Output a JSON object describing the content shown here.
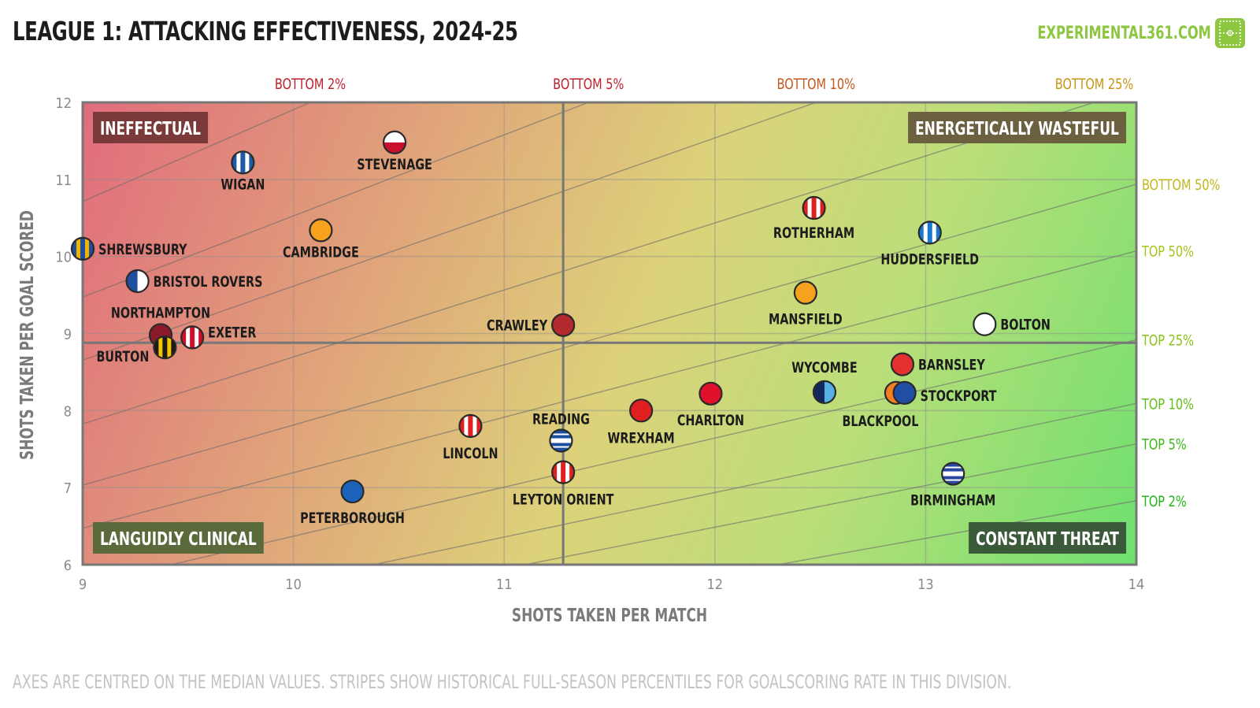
{
  "header": {
    "title": "LEAGUE 1: ATTACKING EFFECTIVENESS, 2024-25",
    "brand": "EXPERIMENTAL361.COM"
  },
  "footnote": "AXES ARE CENTRED ON THE MEDIAN VALUES. STRIPES SHOW HISTORICAL FULL-SEASON PERCENTILES FOR GOALSCORING RATE IN THIS DIVISION.",
  "chart_data": {
    "type": "scatter",
    "title": "LEAGUE 1: ATTACKING EFFECTIVENESS, 2024-25",
    "xlabel": "SHOTS TAKEN PER MATCH",
    "ylabel": "SHOTS TAKEN PER GOAL SCORED",
    "xlim": [
      9,
      14
    ],
    "ylim": [
      6,
      12
    ],
    "xticks": [
      "9",
      "10",
      "11",
      "12",
      "13",
      "14"
    ],
    "yticks": [
      "6",
      "7",
      "8",
      "9",
      "10",
      "11",
      "12"
    ],
    "grid": true,
    "median_x": 11.28,
    "median_y": 8.88,
    "quadrants": {
      "top_left": "INEFFECTUAL",
      "top_right": "ENERGETICALLY WASTEFUL",
      "bottom_left": "LANGUIDLY CLINICAL",
      "bottom_right": "CONSTANT THREAT"
    },
    "percentile_bands": [
      {
        "label": "BOTTOM 2%",
        "goals_per_match": 0.84,
        "color": "#c0202a",
        "edge": "top"
      },
      {
        "label": "BOTTOM 5%",
        "goals_per_match": 0.95,
        "color": "#c0202a",
        "edge": "top"
      },
      {
        "label": "BOTTOM 10%",
        "goals_per_match": 1.04,
        "color": "#c5571c",
        "edge": "top"
      },
      {
        "label": "BOTTOM 25%",
        "goals_per_match": 1.15,
        "color": "#c89513",
        "edge": "top"
      },
      {
        "label": "BOTTOM 50%",
        "goals_per_match": 1.28,
        "color": "#c2b81c",
        "edge": "right"
      },
      {
        "label": "TOP 50%",
        "goals_per_match": 1.39,
        "color": "#a2c41c",
        "edge": "right"
      },
      {
        "label": "TOP 25%",
        "goals_per_match": 1.57,
        "color": "#88c21a",
        "edge": "right"
      },
      {
        "label": "TOP 10%",
        "goals_per_match": 1.73,
        "color": "#62be1a",
        "edge": "right"
      },
      {
        "label": "TOP 5%",
        "goals_per_match": 1.85,
        "color": "#3db81a",
        "edge": "right"
      },
      {
        "label": "TOP 2%",
        "goals_per_match": 2.05,
        "color": "#22b61a",
        "edge": "right"
      }
    ],
    "teams": [
      {
        "name": "STEVENAGE",
        "x": 10.48,
        "y": 11.48,
        "style": "hsplit",
        "c1": "#ffffff",
        "c2": "#c8102e",
        "lx": 0,
        "ly": 34,
        "anchor": "middle"
      },
      {
        "name": "WIGAN",
        "x": 9.76,
        "y": 11.22,
        "style": "vstripe",
        "c1": "#ffffff",
        "c2": "#1f5aa6",
        "lx": 0,
        "ly": 34,
        "anchor": "middle"
      },
      {
        "name": "CAMBRIDGE",
        "x": 10.13,
        "y": 10.34,
        "style": "solid",
        "c1": "#f6a21e",
        "lx": 0,
        "ly": 34,
        "anchor": "middle"
      },
      {
        "name": "SHREWSBURY",
        "x": 9.0,
        "y": 10.1,
        "style": "vstripe",
        "c1": "#f2b200",
        "c2": "#1f4f9e",
        "lx": 20,
        "ly": 7,
        "anchor": "start"
      },
      {
        "name": "BRISTOL ROVERS",
        "x": 9.26,
        "y": 9.68,
        "style": "vsplit",
        "c1": "#1e4fa0",
        "c2": "#ffffff",
        "lx": 20,
        "ly": 7,
        "anchor": "start"
      },
      {
        "name": "NORTHAMPTON",
        "x": 9.37,
        "y": 8.98,
        "style": "solid",
        "c1": "#8b1a2b",
        "lx": 0,
        "ly": -22,
        "anchor": "middle"
      },
      {
        "name": "EXETER",
        "x": 9.52,
        "y": 8.95,
        "style": "vstripe",
        "c1": "#ffffff",
        "c2": "#d0102a",
        "lx": 20,
        "ly": 0,
        "anchor": "start"
      },
      {
        "name": "BURTON",
        "x": 9.39,
        "y": 8.82,
        "style": "vstripe",
        "c1": "#f2c500",
        "c2": "#1a1a1a",
        "lx": -20,
        "ly": 18,
        "anchor": "end"
      },
      {
        "name": "CRAWLEY",
        "x": 11.28,
        "y": 9.11,
        "style": "solid",
        "c1": "#b2292e",
        "lx": -20,
        "ly": 7,
        "anchor": "end"
      },
      {
        "name": "ROTHERHAM",
        "x": 12.47,
        "y": 10.63,
        "style": "vstripe",
        "c1": "#ffffff",
        "c2": "#e02020",
        "lx": 0,
        "ly": 38,
        "anchor": "middle"
      },
      {
        "name": "HUDDERSFIELD",
        "x": 13.02,
        "y": 10.31,
        "style": "vstripe",
        "c1": "#ffffff",
        "c2": "#1a78cf",
        "lx": 0,
        "ly": 40,
        "anchor": "middle"
      },
      {
        "name": "MANSFIELD",
        "x": 12.43,
        "y": 9.53,
        "style": "solid",
        "c1": "#f6a21e",
        "lx": 0,
        "ly": 40,
        "anchor": "middle"
      },
      {
        "name": "BOLTON",
        "x": 13.28,
        "y": 9.12,
        "style": "solid",
        "c1": "#ffffff",
        "lx": 20,
        "ly": 7,
        "anchor": "start"
      },
      {
        "name": "BARNSLEY",
        "x": 12.89,
        "y": 8.6,
        "style": "solid",
        "c1": "#e53030",
        "lx": 20,
        "ly": 7,
        "anchor": "start"
      },
      {
        "name": "WYCOMBE",
        "x": 12.52,
        "y": 8.24,
        "style": "vsplit",
        "c1": "#12285c",
        "c2": "#56b0e6",
        "lx": 0,
        "ly": -25,
        "anchor": "middle"
      },
      {
        "name": "BLACKPOOL",
        "x": 12.86,
        "y": 8.23,
        "style": "solid",
        "c1": "#f47f20",
        "lx": -20,
        "ly": 42,
        "anchor": "middle"
      },
      {
        "name": "STOCKPORT",
        "x": 12.9,
        "y": 8.23,
        "style": "solid",
        "c1": "#1f4ea3",
        "lx": 20,
        "ly": 10,
        "anchor": "start"
      },
      {
        "name": "CHARLTON",
        "x": 11.98,
        "y": 8.22,
        "style": "solid",
        "c1": "#e0102a",
        "lx": 0,
        "ly": 40,
        "anchor": "middle"
      },
      {
        "name": "WREXHAM",
        "x": 11.65,
        "y": 8.0,
        "style": "solid",
        "c1": "#e02020",
        "lx": 0,
        "ly": 41,
        "anchor": "middle"
      },
      {
        "name": "READING",
        "x": 11.27,
        "y": 7.61,
        "style": "hstripe",
        "c1": "#ffffff",
        "c2": "#1a4fa0",
        "lx": 0,
        "ly": -21,
        "anchor": "middle"
      },
      {
        "name": "LINCOLN",
        "x": 10.84,
        "y": 7.8,
        "style": "vstripe",
        "c1": "#ffffff",
        "c2": "#e02020",
        "lx": 0,
        "ly": 41,
        "anchor": "middle"
      },
      {
        "name": "LEYTON ORIENT",
        "x": 11.28,
        "y": 7.2,
        "style": "vstripe",
        "c1": "#ffffff",
        "c2": "#e02020",
        "lx": 0,
        "ly": 41,
        "anchor": "middle"
      },
      {
        "name": "PETERBOROUGH",
        "x": 10.28,
        "y": 6.95,
        "style": "solid",
        "c1": "#1a63b8",
        "lx": 0,
        "ly": 40,
        "anchor": "middle"
      },
      {
        "name": "BIRMINGHAM",
        "x": 13.13,
        "y": 7.18,
        "style": "hstripe",
        "c1": "#ffffff",
        "c2": "#2a47a0",
        "lx": 0,
        "ly": 40,
        "anchor": "middle"
      }
    ]
  }
}
